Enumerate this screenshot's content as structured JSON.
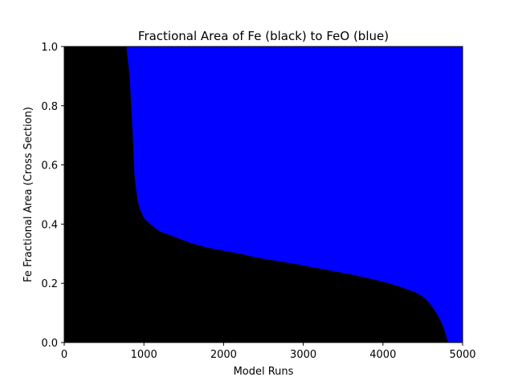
{
  "chart_data": {
    "type": "area",
    "title": "Fractional Area of Fe (black) to FeO (blue)",
    "xlabel": "Model Runs",
    "ylabel": "Fe Fractional Area (Cross Section)",
    "xlim": [
      0,
      5000
    ],
    "ylim": [
      0,
      1.0
    ],
    "xticks": [
      "0",
      "1000",
      "2000",
      "3000",
      "4000",
      "5000"
    ],
    "yticks": [
      "0.0",
      "0.2",
      "0.4",
      "0.6",
      "0.8",
      "1.0"
    ],
    "grid": false,
    "colors": {
      "fe": "#000000",
      "feo": "#0000ff"
    },
    "series": [
      {
        "x": [
          0,
          780,
          800,
          820,
          840,
          860,
          880,
          900,
          920,
          950,
          1000,
          1100,
          1200,
          1300,
          1400,
          1500,
          1600,
          1800,
          2000,
          2200,
          2400,
          2600,
          2800,
          3000,
          3200,
          3400,
          3600,
          3800,
          4000,
          4200,
          4400,
          4500,
          4560,
          4620,
          4680,
          4720,
          4760,
          4790,
          4810,
          4820
        ],
        "values": [
          1.0,
          1.0,
          0.95,
          0.9,
          0.8,
          0.7,
          0.57,
          0.52,
          0.48,
          0.45,
          0.42,
          0.395,
          0.375,
          0.365,
          0.355,
          0.345,
          0.335,
          0.32,
          0.31,
          0.3,
          0.288,
          0.278,
          0.27,
          0.26,
          0.25,
          0.24,
          0.23,
          0.218,
          0.205,
          0.19,
          0.17,
          0.155,
          0.14,
          0.12,
          0.095,
          0.075,
          0.05,
          0.025,
          0.005,
          0.0
        ]
      }
    ]
  }
}
